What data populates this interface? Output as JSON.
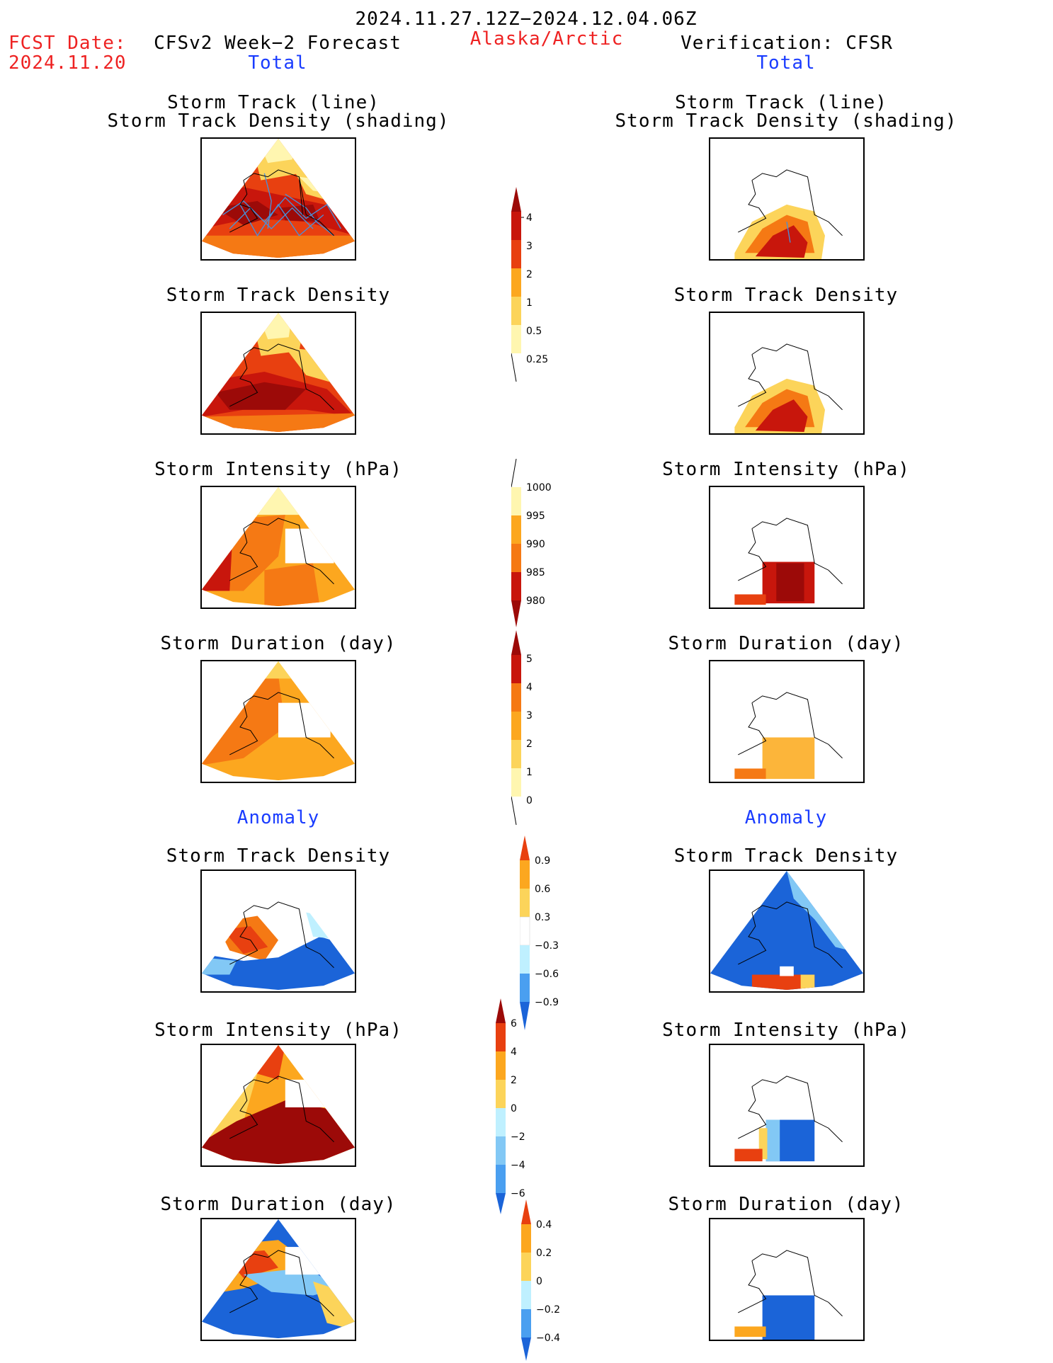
{
  "header": {
    "date_range": "2024.11.27.12Z−2024.12.04.06Z",
    "fcst_label": "FCST Date:",
    "fcst_date": "2024.11.20",
    "forecast_title": "CFSv2 Week−2 Forecast",
    "region": "Alaska/Arctic",
    "verification_title": "Verification: CFSR",
    "left_section": "Total",
    "right_section": "Total"
  },
  "sections": {
    "anomaly_left": "Anomaly",
    "anomaly_right": "Anomaly"
  },
  "panel_titles": {
    "track_line": "Storm Track (line)",
    "track_shading": "Storm Track Density (shading)",
    "track_density": "Storm Track Density",
    "intensity": "Storm Intensity (hPa)",
    "duration": "Storm Duration (day)"
  },
  "colorbars": {
    "density": {
      "labels": [
        "4",
        "3",
        "2",
        "1",
        "0.5",
        "0.25"
      ]
    },
    "intensity": {
      "labels": [
        "1000",
        "995",
        "990",
        "985",
        "980"
      ]
    },
    "duration": {
      "labels": [
        "5",
        "4",
        "3",
        "2",
        "1",
        "0"
      ]
    },
    "density_anom": {
      "labels": [
        "0.9",
        "0.6",
        "0.3",
        "−0.3",
        "−0.6",
        "−0.9"
      ]
    },
    "intensity_anom": {
      "labels": [
        "6",
        "4",
        "2",
        "0",
        "−2",
        "−4",
        "−6"
      ]
    },
    "duration_anom": {
      "labels": [
        "0.4",
        "0.2",
        "0",
        "−0.2",
        "−0.4"
      ]
    }
  },
  "colors": {
    "total_scale": [
      "#fff6b0",
      "#fcd45a",
      "#fca71f",
      "#f57914",
      "#e84010",
      "#c8160c",
      "#9c0a08"
    ],
    "anomaly_warm": [
      "#fff6b0",
      "#fcd45a",
      "#fca71f",
      "#f57914",
      "#e84010",
      "#9c0a08"
    ],
    "anomaly_cool": [
      "#bff0ff",
      "#82c8f5",
      "#4a9ff0",
      "#1b64d8"
    ],
    "track_lines": "#4a8fd8",
    "title_red": "#ee2222",
    "section_blue": "#1a3cff"
  }
}
